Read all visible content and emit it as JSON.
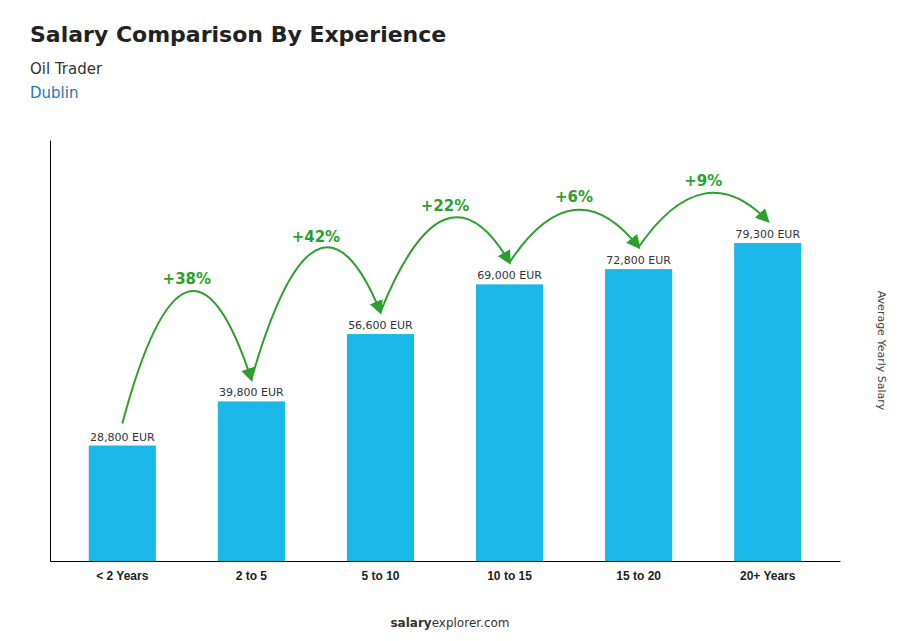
{
  "chart_data": {
    "type": "bar",
    "title": "Salary Comparison By Experience",
    "subtitle": [
      "Oil Trader",
      "Dublin"
    ],
    "ylabel": "Average Yearly Salary",
    "categories": [
      "< 2 Years",
      "2 to 5",
      "5 to 10",
      "10 to 15",
      "15 to 20",
      "20+ Years"
    ],
    "values": [
      28800,
      39800,
      56600,
      69000,
      72800,
      79300
    ],
    "value_labels": [
      "28,800 EUR",
      "39,800 EUR",
      "56,600 EUR",
      "69,000 EUR",
      "72,800 EUR",
      "79,300 EUR"
    ],
    "data_labels": true,
    "annotations": [
      "+38%",
      "+42%",
      "+22%",
      "+6%",
      "+9%"
    ],
    "color": "#1ab8e8",
    "ylim": [
      0,
      105000
    ],
    "tick_labels": "x",
    "grid": false,
    "footer": [
      "salary",
      "explorer.com"
    ]
  }
}
